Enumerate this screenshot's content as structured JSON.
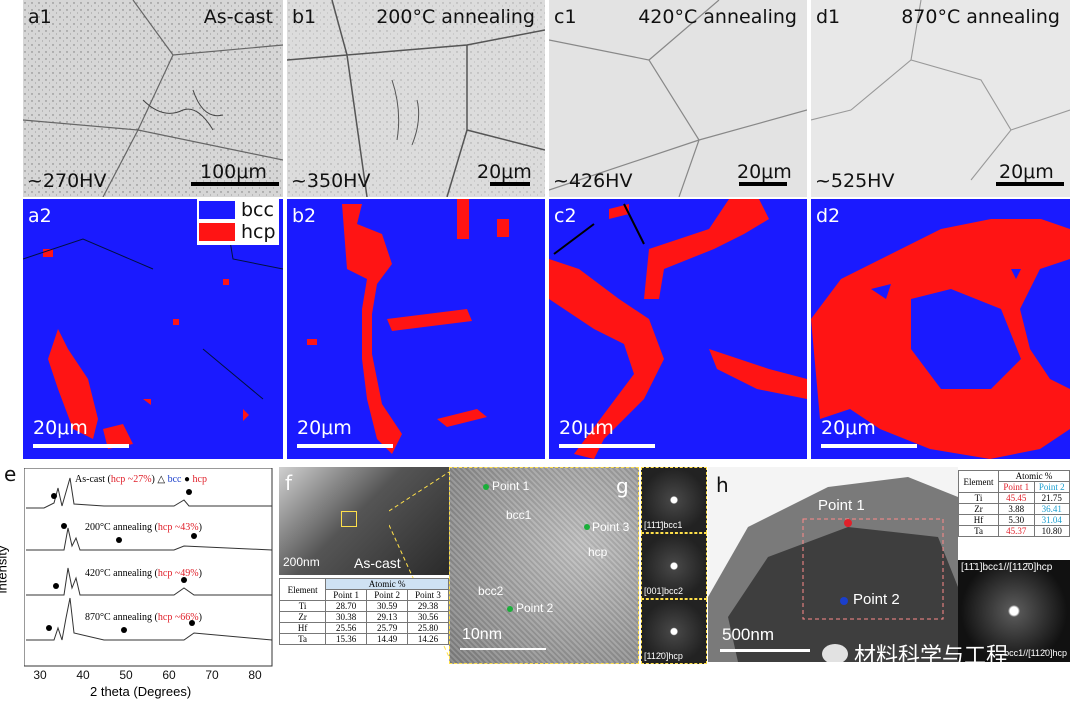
{
  "row1": [
    {
      "label": "a1",
      "title": "As-cast",
      "hardness": "~270HV",
      "scale": "100μm"
    },
    {
      "label": "b1",
      "title": "200°C annealing",
      "hardness": "~350HV",
      "scale": "20μm"
    },
    {
      "label": "c1",
      "title": "420°C annealing",
      "hardness": "~426HV",
      "scale": "20μm"
    },
    {
      "label": "d1",
      "title": "870°C annealing",
      "hardness": "~525HV",
      "scale": "20μm"
    }
  ],
  "row2": [
    {
      "label": "a2",
      "scale": "20μm"
    },
    {
      "label": "b2",
      "scale": "20μm"
    },
    {
      "label": "c2",
      "scale": "20μm"
    },
    {
      "label": "d2",
      "scale": "20μm"
    }
  ],
  "phase_legend": {
    "bcc": "bcc",
    "hcp": "hcp",
    "bcc_color": "#1a1aff",
    "hcp_color": "#ff1414"
  },
  "xrd": {
    "label": "e",
    "ylabel": "intensity",
    "xlabel": "2 theta (Degrees)",
    "xticks": [
      "30",
      "40",
      "50",
      "60",
      "70",
      "80"
    ],
    "legend_bcc": "bcc",
    "legend_hcp": "hcp",
    "traces": [
      {
        "name": "As-cast",
        "hcp": "hcp ~27%"
      },
      {
        "name": "200°C annealing",
        "hcp": "hcp ~43%"
      },
      {
        "name": "420°C annealing",
        "hcp": "hcp ~49%"
      },
      {
        "name": "870°C annealing",
        "hcp": "hcp ~66%"
      }
    ]
  },
  "tem_f": {
    "label": "f",
    "scale": "200nm",
    "caption": "As-cast",
    "table": {
      "h1": "Element",
      "h2": "Atomic %",
      "cols": [
        "Point 1",
        "Point 2",
        "Point 3"
      ],
      "rows": [
        [
          "Ti",
          "28.70",
          "30.59",
          "29.38"
        ],
        [
          "Zr",
          "30.38",
          "29.13",
          "30.56"
        ],
        [
          "Hf",
          "25.56",
          "25.79",
          "25.80"
        ],
        [
          "Ta",
          "15.36",
          "14.49",
          "14.26"
        ]
      ]
    }
  },
  "hrtem": {
    "scale": "10nm",
    "point1": "Point 1",
    "point2": "Point 2",
    "point3": "Point 3",
    "bcc1": "bcc1",
    "bcc2": "bcc2",
    "hcp": "hcp"
  },
  "fft": {
    "label": "g",
    "f1": "[11̄1̄]bcc1",
    "f2": "[001]bcc2",
    "f3": "[112̄0]hcp"
  },
  "tem_h": {
    "label": "h",
    "scale": "500nm",
    "point1": "Point 1",
    "point2": "Point 2",
    "saed": "[11̄1]bcc1//[112̄0]hcp",
    "saed_bottom": "bcc1//[112̄0]hcp",
    "watermark": "材料科学与工程",
    "table": {
      "h1": "Element",
      "h2": "Atomic %",
      "cols": [
        "Point 1",
        "Point 2"
      ],
      "rows": [
        [
          "Ti",
          "45.45",
          "21.75"
        ],
        [
          "Zr",
          "3.88",
          "36.41"
        ],
        [
          "Hf",
          "5.30",
          "31.04"
        ],
        [
          "Ta",
          "45.37",
          "10.80"
        ]
      ]
    }
  }
}
